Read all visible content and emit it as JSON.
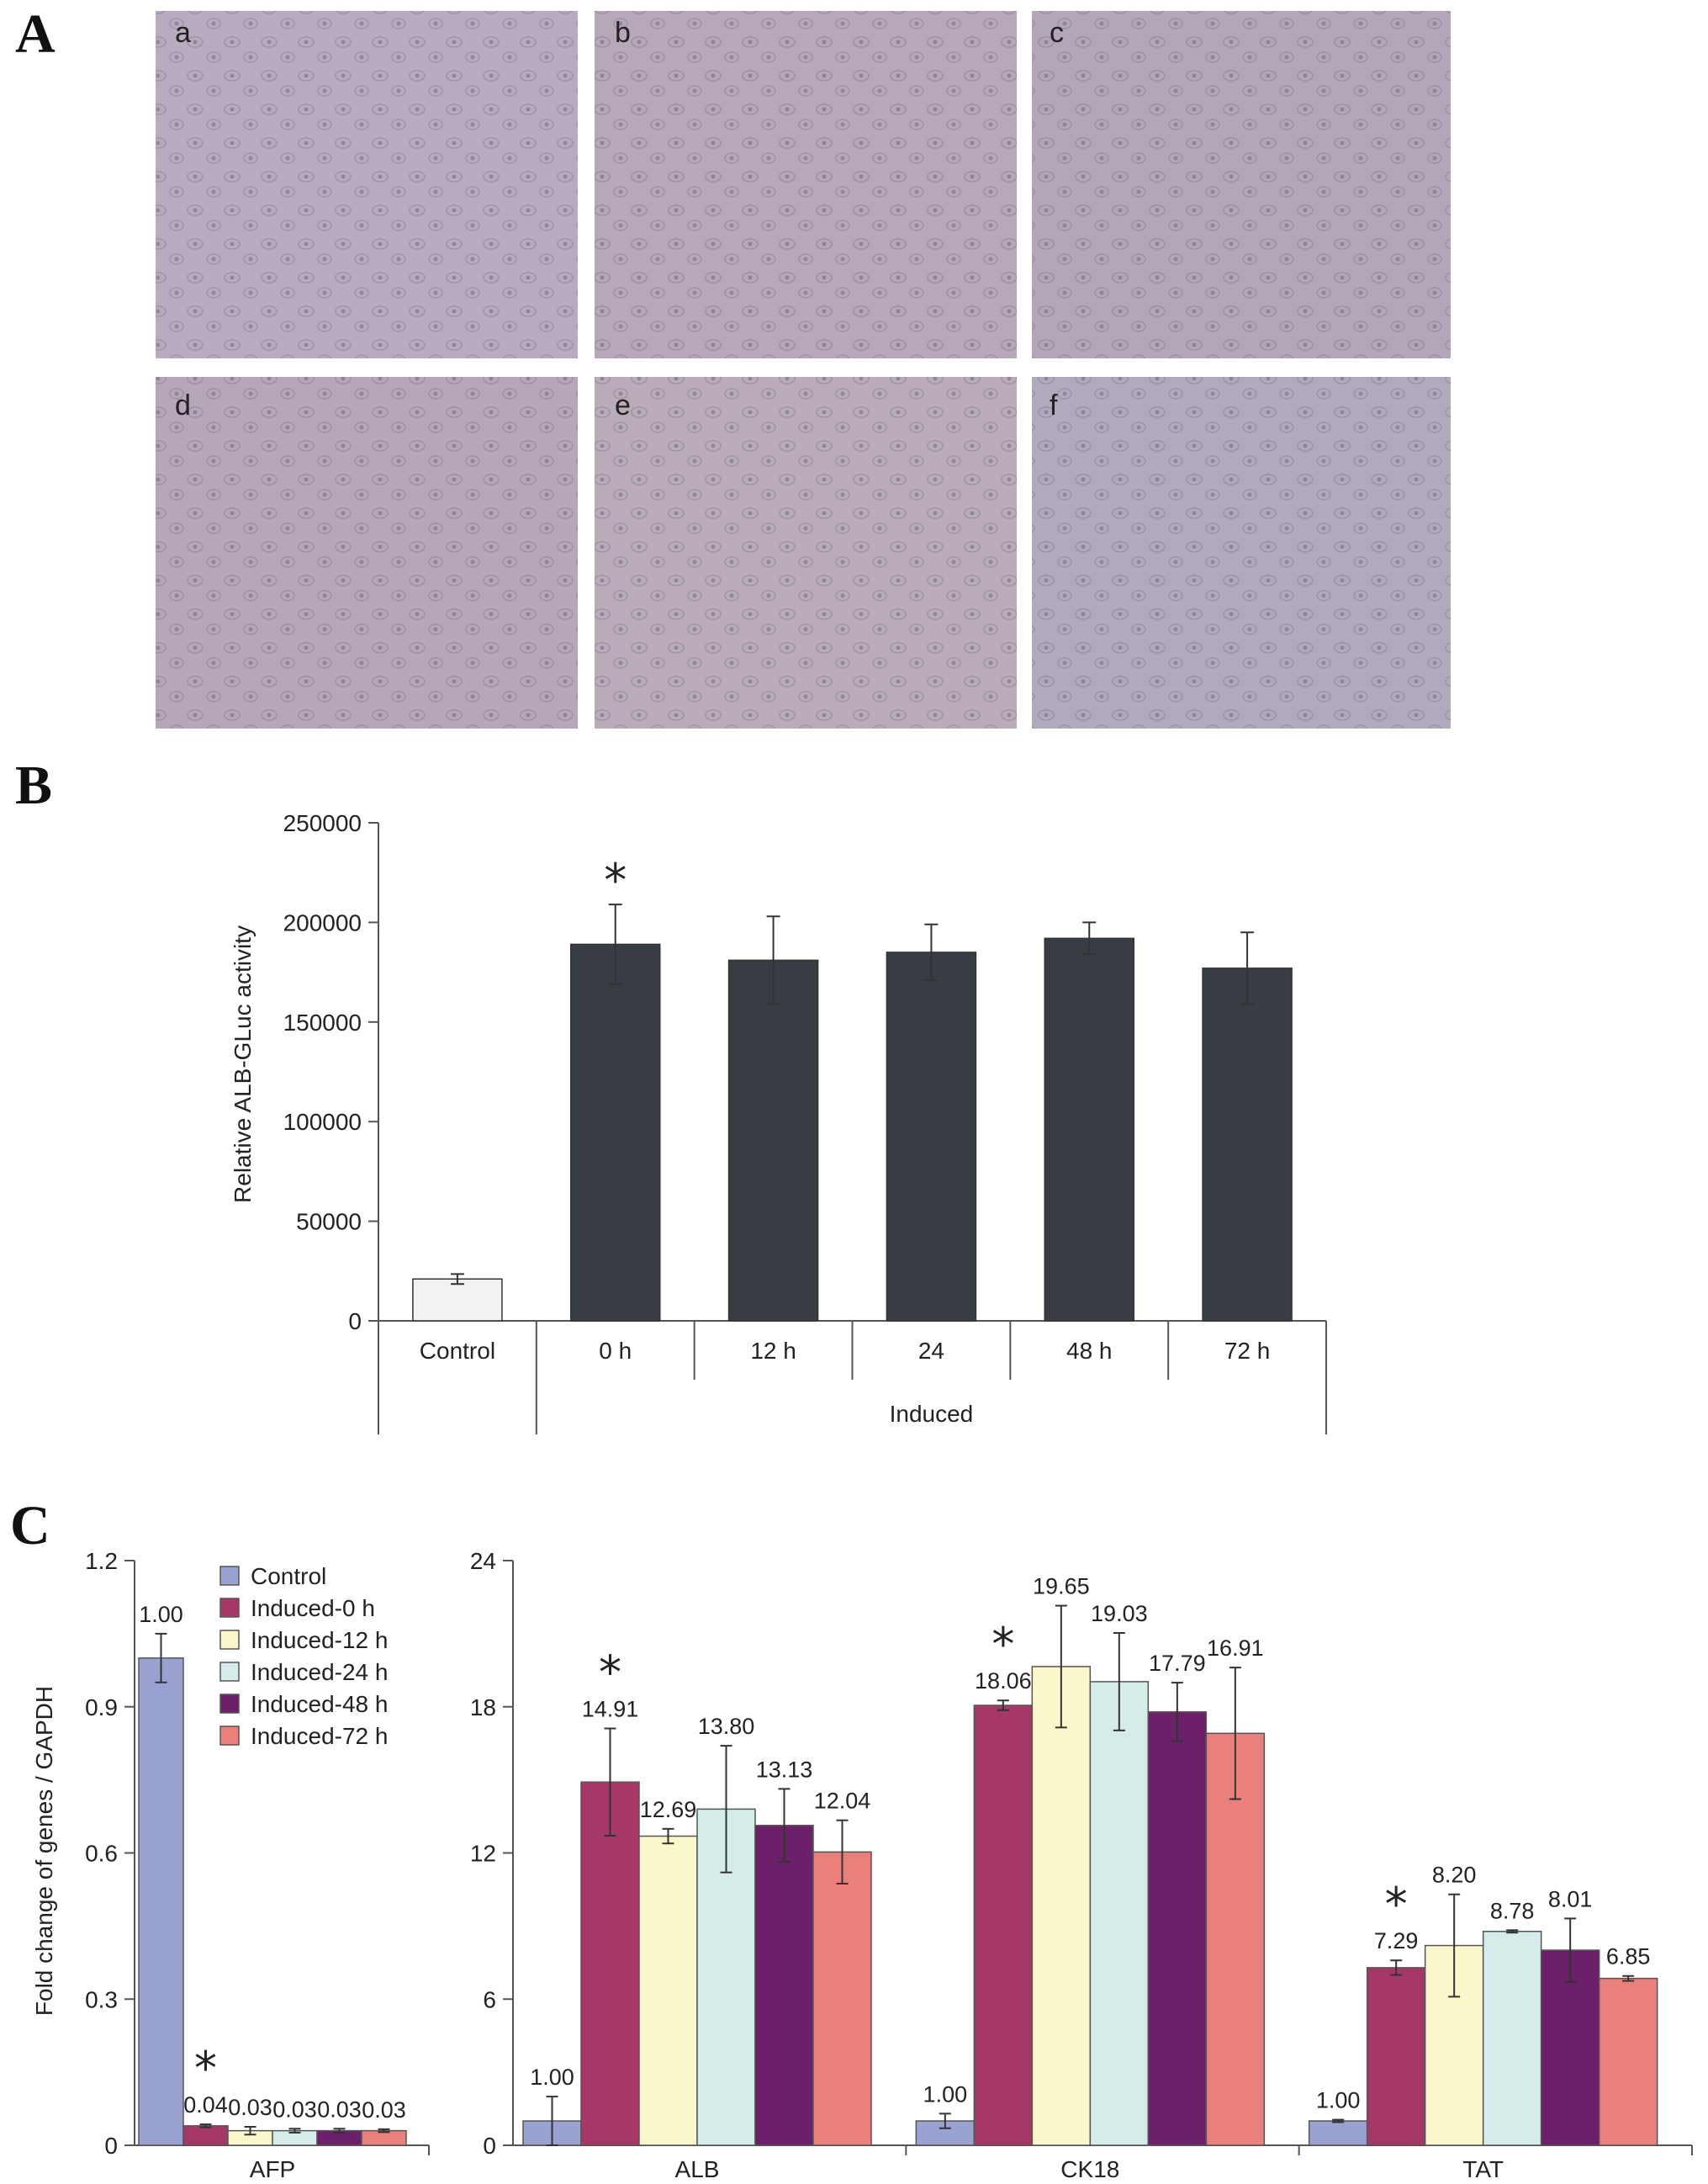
{
  "panels": {
    "A": {
      "letter": "A",
      "images": [
        {
          "label": "a",
          "color": "#b9abbf"
        },
        {
          "label": "b",
          "color": "#b6a7b9"
        },
        {
          "label": "c",
          "color": "#b4a6b9"
        },
        {
          "label": "d",
          "color": "#b5a6b8"
        },
        {
          "label": "e",
          "color": "#b9acb8"
        },
        {
          "label": "f",
          "color": "#b3a9bd"
        }
      ]
    },
    "B": {
      "letter": "B"
    },
    "C": {
      "letter": "C"
    }
  },
  "chart_data": [
    {
      "id": "B",
      "type": "bar",
      "ylabel": "Relative ALB-GLuc activity",
      "xlabel": "Induced",
      "ylim": [
        0,
        250000
      ],
      "yticks": [
        0,
        50000,
        100000,
        150000,
        200000,
        250000
      ],
      "categories": [
        "Control",
        "0 h",
        "12 h",
        "24",
        "48 h",
        "72 h"
      ],
      "values": [
        21000,
        189000,
        181000,
        185000,
        192000,
        177000
      ],
      "errors": [
        2500,
        20000,
        22000,
        14000,
        8000,
        18000
      ],
      "significant": [
        false,
        true,
        false,
        false,
        false,
        false
      ],
      "significance_mark": "*",
      "bar_colors": {
        "control": "#f2f2f2",
        "induced": "#383d44"
      }
    },
    {
      "id": "C-AFP",
      "type": "bar",
      "ylabel": "Fold change of genes / GAPDH",
      "ylim": [
        0,
        1.2
      ],
      "yticks": [
        "0",
        "0.3",
        "0.6",
        "0.9",
        "1.2"
      ],
      "categories": [
        "AFP"
      ],
      "series": [
        {
          "name": "Control",
          "color": "#9aa2d2",
          "values": [
            1.0
          ],
          "labels": [
            "1.00"
          ],
          "errors": [
            0.05
          ]
        },
        {
          "name": "Induced-0 h",
          "color": "#a63868",
          "values": [
            0.04
          ],
          "labels": [
            "0.04"
          ],
          "errors": [
            0.003
          ]
        },
        {
          "name": "Induced-12 h",
          "color": "#fbf7cd",
          "values": [
            0.03
          ],
          "labels": [
            "0.03"
          ],
          "errors": [
            0.008
          ]
        },
        {
          "name": "Induced-24 h",
          "color": "#d5eceb",
          "values": [
            0.03
          ],
          "labels": [
            "0.03"
          ],
          "errors": [
            0.004
          ]
        },
        {
          "name": "Induced-48 h",
          "color": "#6b2069",
          "values": [
            0.03
          ],
          "labels": [
            "0.03"
          ],
          "errors": [
            0.004
          ]
        },
        {
          "name": "Induced-72 h",
          "color": "#ea807c",
          "values": [
            0.03
          ],
          "labels": [
            "0.03"
          ],
          "errors": [
            0.003
          ]
        }
      ],
      "significant_series": [
        1
      ],
      "significance_mark": "*"
    },
    {
      "id": "C-right",
      "type": "bar",
      "ylim": [
        0,
        24
      ],
      "yticks": [
        "0",
        "6",
        "12",
        "18",
        "24"
      ],
      "categories": [
        "ALB",
        "CK18",
        "TAT"
      ],
      "series": [
        {
          "name": "Control",
          "color": "#9aa2d2",
          "values": [
            1.0,
            1.0,
            1.0
          ],
          "labels": [
            "1.00",
            "1.00",
            "1.00"
          ],
          "errors": [
            1.0,
            0.3,
            0.05
          ]
        },
        {
          "name": "Induced-0 h",
          "color": "#a63868",
          "values": [
            14.91,
            18.06,
            7.29
          ],
          "labels": [
            "14.91",
            "18.06",
            "7.29"
          ],
          "errors": [
            2.2,
            0.2,
            0.3
          ]
        },
        {
          "name": "Induced-12 h",
          "color": "#fbf7cd",
          "values": [
            12.69,
            19.65,
            8.2
          ],
          "labels": [
            "12.69",
            "19.65",
            "8.20"
          ],
          "errors": [
            0.3,
            2.5,
            2.1
          ]
        },
        {
          "name": "Induced-24 h",
          "color": "#d5eceb",
          "values": [
            13.8,
            19.03,
            8.78
          ],
          "labels": [
            "13.80",
            "19.03",
            "8.78"
          ],
          "errors": [
            2.6,
            2.0,
            0.05
          ]
        },
        {
          "name": "Induced-48 h",
          "color": "#6b2069",
          "values": [
            13.13,
            17.79,
            8.01
          ],
          "labels": [
            "13.13",
            "17.79",
            "8.01"
          ],
          "errors": [
            1.5,
            1.2,
            1.3
          ]
        },
        {
          "name": "Induced-72 h",
          "color": "#ea807c",
          "values": [
            12.04,
            16.91,
            6.85
          ],
          "labels": [
            "12.04",
            "16.91",
            "6.85"
          ],
          "errors": [
            1.3,
            2.7,
            0.1
          ]
        }
      ],
      "significant_series": [
        1
      ],
      "significance_mark": "*"
    }
  ],
  "legend": {
    "placement": "top-left",
    "items": [
      "Control",
      "Induced-0 h",
      "Induced-12 h",
      "Induced-24 h",
      "Induced-48 h",
      "Induced-72 h"
    ]
  }
}
